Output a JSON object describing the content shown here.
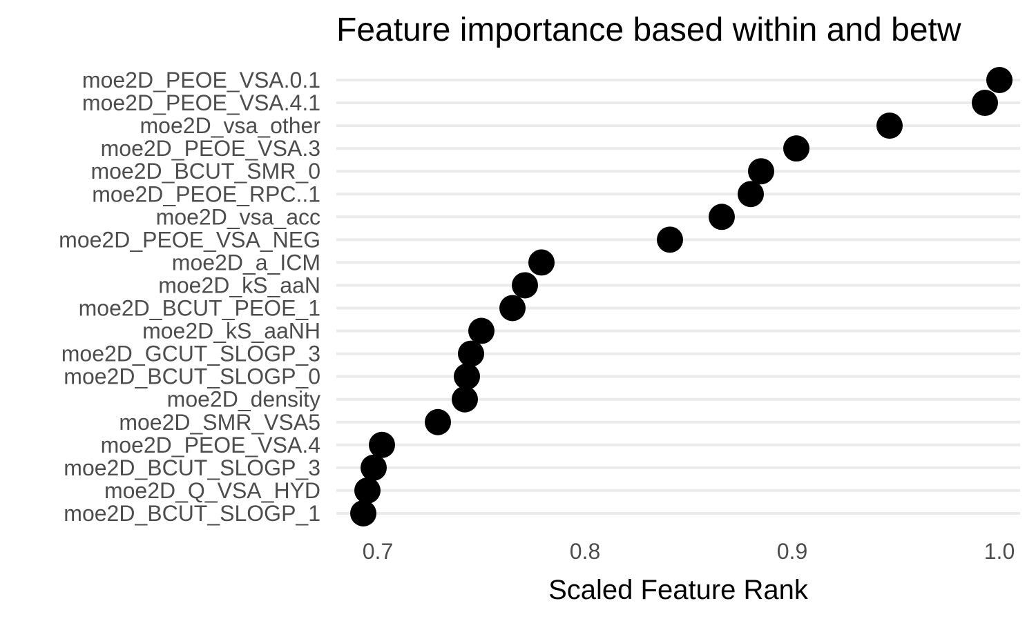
{
  "chart_data": {
    "type": "scatter",
    "title": "Feature importance based within and betw",
    "xlabel": "Scaled Feature Rank",
    "ylabel": "",
    "xlim": [
      0.68,
      1.01
    ],
    "xticks": [
      0.7,
      0.8,
      0.9,
      1.0
    ],
    "xtick_labels": [
      "0.7",
      "0.8",
      "0.9",
      "1.0"
    ],
    "grid": "horizontal",
    "point_color": "#000000",
    "categories": [
      "moe2D_PEOE_VSA.0.1",
      "moe2D_PEOE_VSA.4.1",
      "moe2D_vsa_other",
      "moe2D_PEOE_VSA.3",
      "moe2D_BCUT_SMR_0",
      "moe2D_PEOE_RPC..1",
      "moe2D_vsa_acc",
      "moe2D_PEOE_VSA_NEG",
      "moe2D_a_ICM",
      "moe2D_kS_aaN",
      "moe2D_BCUT_PEOE_1",
      "moe2D_kS_aaNH",
      "moe2D_GCUT_SLOGP_3",
      "moe2D_BCUT_SLOGP_0",
      "moe2D_density",
      "moe2D_SMR_VSA5",
      "moe2D_PEOE_VSA.4",
      "moe2D_BCUT_SLOGP_3",
      "moe2D_Q_VSA_HYD",
      "moe2D_BCUT_SLOGP_1"
    ],
    "values": [
      1.0,
      0.993,
      0.947,
      0.902,
      0.885,
      0.88,
      0.866,
      0.841,
      0.779,
      0.771,
      0.765,
      0.75,
      0.745,
      0.743,
      0.742,
      0.729,
      0.702,
      0.698,
      0.695,
      0.693
    ]
  }
}
